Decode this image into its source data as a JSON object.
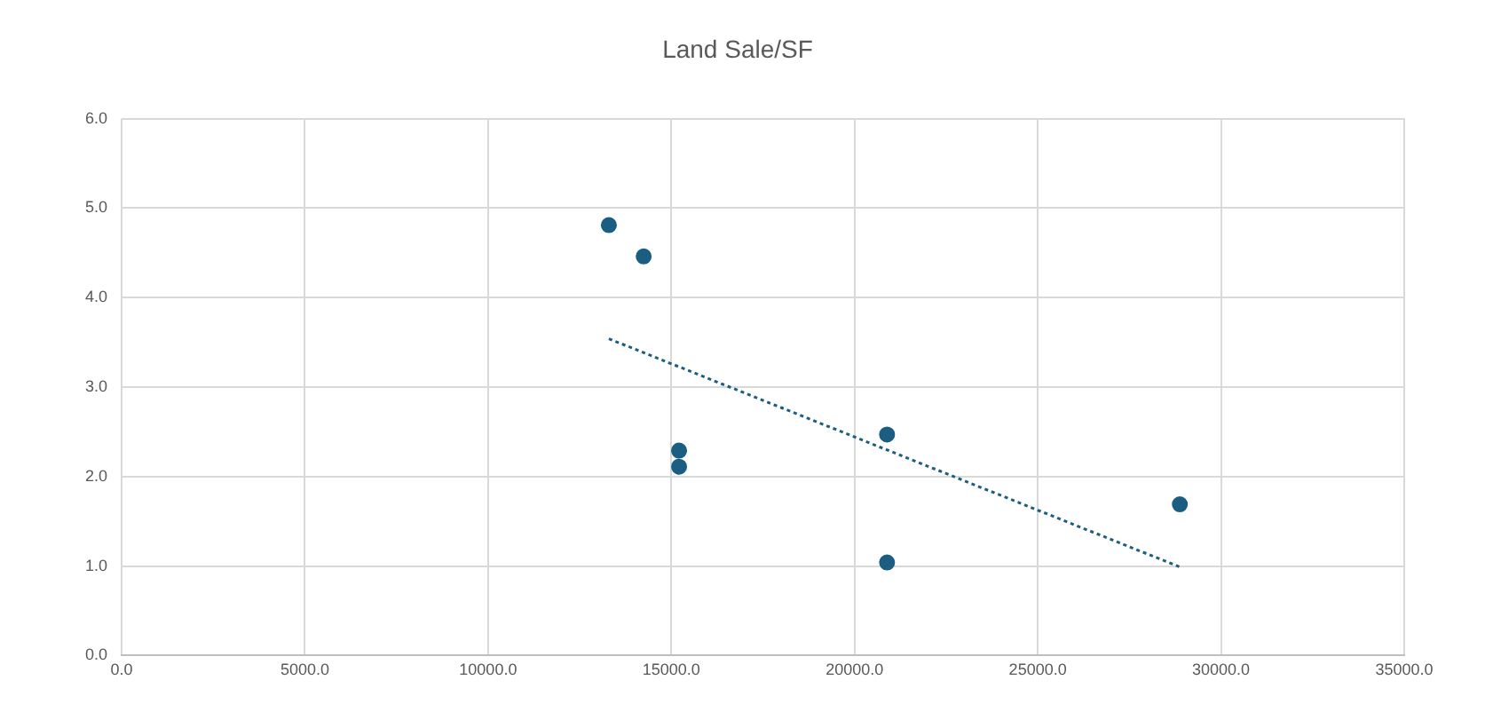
{
  "chart_data": {
    "type": "scatter",
    "title": "Land Sale/SF",
    "series": [
      {
        "color": "#1b5e82",
        "marker": "circle",
        "x": [
          13296,
          14246,
          15212,
          15212,
          20887,
          20887,
          28877
        ],
        "values": [
          4.81,
          4.46,
          2.29,
          2.11,
          2.47,
          1.04,
          1.69
        ]
      },
      {
        "type": "line",
        "color": "#1b5e82",
        "line_style": "dotted",
        "marker": "none",
        "x": [
          13296,
          28877
        ],
        "values": [
          3.54,
          0.99
        ]
      }
    ],
    "xlim": [
      0,
      35000
    ],
    "xticks": [
      {
        "value": 0,
        "label": "0.0"
      },
      {
        "value": 5000,
        "label": "5000.0"
      },
      {
        "value": 10000,
        "label": "10000.0"
      },
      {
        "value": 15000,
        "label": "15000.0"
      },
      {
        "value": 20000,
        "label": "20000.0"
      },
      {
        "value": 25000,
        "label": "25000.0"
      },
      {
        "value": 30000,
        "label": "30000.0"
      },
      {
        "value": 35000,
        "label": "35000.0"
      }
    ],
    "ylim": [
      0,
      6
    ],
    "yticks": [
      {
        "value": 0,
        "label": "0.0"
      },
      {
        "value": 1,
        "label": "1.0"
      },
      {
        "value": 2,
        "label": "2.0"
      },
      {
        "value": 3,
        "label": "3.0"
      },
      {
        "value": 4,
        "label": "4.0"
      },
      {
        "value": 5,
        "label": "5.0"
      },
      {
        "value": 6,
        "label": "6.0"
      }
    ],
    "grid": true,
    "legend": false
  }
}
